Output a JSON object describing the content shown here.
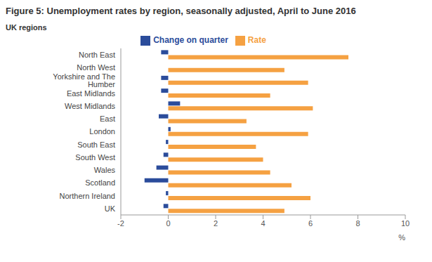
{
  "chart_data": {
    "type": "bar",
    "title": "Figure 5: Unemployment rates by region, seasonally adjusted, April to June 2016",
    "subtitle": "UK regions",
    "x_label": "%",
    "orientation": "horizontal",
    "categories": [
      "North East",
      "North West",
      "Yorkshire and The Humber",
      "East Midlands",
      "West Midlands",
      "East",
      "London",
      "South East",
      "South West",
      "Wales",
      "Scotland",
      "Northern Ireland",
      "UK"
    ],
    "series": [
      {
        "name": "Change on quarter",
        "color": "#2b4c9b",
        "values": [
          -0.3,
          0.0,
          -0.3,
          -0.3,
          0.5,
          -0.4,
          0.1,
          -0.1,
          -0.2,
          -0.5,
          -1.0,
          -0.1,
          -0.2
        ]
      },
      {
        "name": "Rate",
        "color": "#f5a142",
        "values": [
          7.6,
          4.9,
          5.9,
          4.3,
          6.1,
          3.3,
          5.9,
          3.7,
          4.0,
          4.3,
          5.2,
          6.0,
          4.9
        ]
      }
    ],
    "xlim": [
      -2,
      10
    ],
    "xticks": [
      -2,
      0,
      2,
      4,
      6,
      8,
      10
    ],
    "legend": "top",
    "grid": false
  }
}
